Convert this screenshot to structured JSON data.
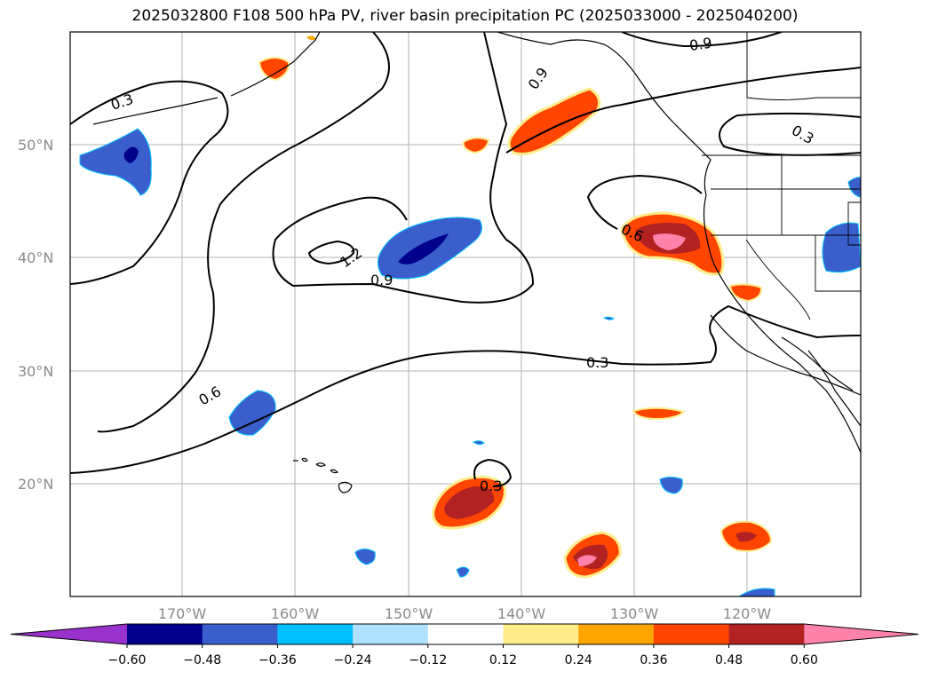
{
  "title": "2025032800 F108 500 hPa PV, river basin precipitation PC (2025033000 - 2025040200)",
  "lat_labels": [
    "50°N",
    "40°N",
    "30°N",
    "20°N"
  ],
  "lon_labels": [
    "170°W",
    "160°W",
    "150°W",
    "140°W",
    "130°W",
    "120°W"
  ],
  "contour_labels": [
    "0.3",
    "0.9",
    "1.2",
    "0.9",
    "0.6",
    "0.9",
    "0.3",
    "0.6",
    "0.3",
    "0.3"
  ],
  "colorbar": {
    "ticks": [
      "−0.60",
      "−0.48",
      "−0.36",
      "−0.24",
      "−0.12",
      "0.12",
      "0.24",
      "0.36",
      "0.48",
      "0.60"
    ],
    "colors": [
      "#9932cc",
      "#00008b",
      "#3a5fcd",
      "#00bfff",
      "#b0e2ff",
      "#ffffff",
      "#ffec8b",
      "#ffa500",
      "#ff4500",
      "#b22222",
      "#ff82ab"
    ]
  }
}
